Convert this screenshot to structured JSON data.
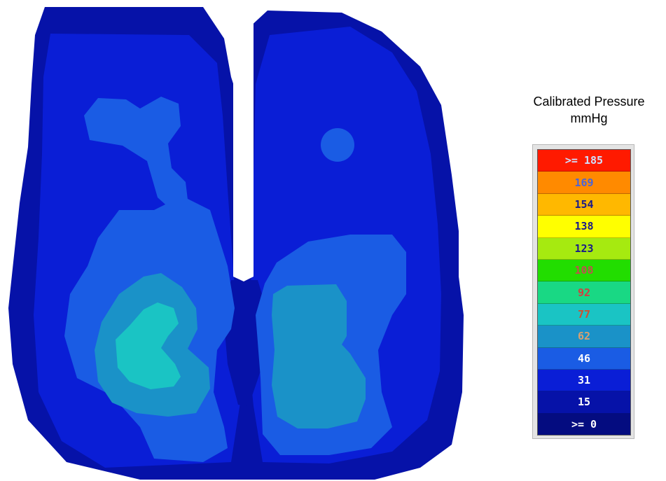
{
  "chart_data": {
    "type": "heatmap",
    "title": "Calibrated Pressure",
    "unit": "mmHg",
    "scale": [
      {
        "label": ">= 185",
        "color": "#ff1a00",
        "text_color": "#cfe0ff"
      },
      {
        "label": "169",
        "color": "#ff8a00",
        "text_color": "#4a64d8"
      },
      {
        "label": "154",
        "color": "#ffb800",
        "text_color": "#1a1a8a"
      },
      {
        "label": "138",
        "color": "#ffff00",
        "text_color": "#1a1a8a"
      },
      {
        "label": "123",
        "color": "#a6ea10",
        "text_color": "#1a1a8a"
      },
      {
        "label": "108",
        "color": "#22dd00",
        "text_color": "#c05050"
      },
      {
        "label": "92",
        "color": "#19d884",
        "text_color": "#d04040"
      },
      {
        "label": "77",
        "color": "#1ac4c4",
        "text_color": "#d05030"
      },
      {
        "label": "62",
        "color": "#1a92c8",
        "text_color": "#d8a070"
      },
      {
        "label": "46",
        "color": "#1a5ce4",
        "text_color": "#ffffff"
      },
      {
        "label": "31",
        "color": "#0a1ed6",
        "text_color": "#ffffff"
      },
      {
        "label": "15",
        "color": "#0612a8",
        "text_color": "#ffffff"
      },
      {
        "label": ">= 0",
        "color": "#040c80",
        "text_color": "#ffffff"
      }
    ],
    "regions_by_level": {
      "15": "outer outline of both seat halves",
      "31": "main interior of both halves",
      "46": "lower thigh regions",
      "62": "left lower hotspot"
    }
  }
}
